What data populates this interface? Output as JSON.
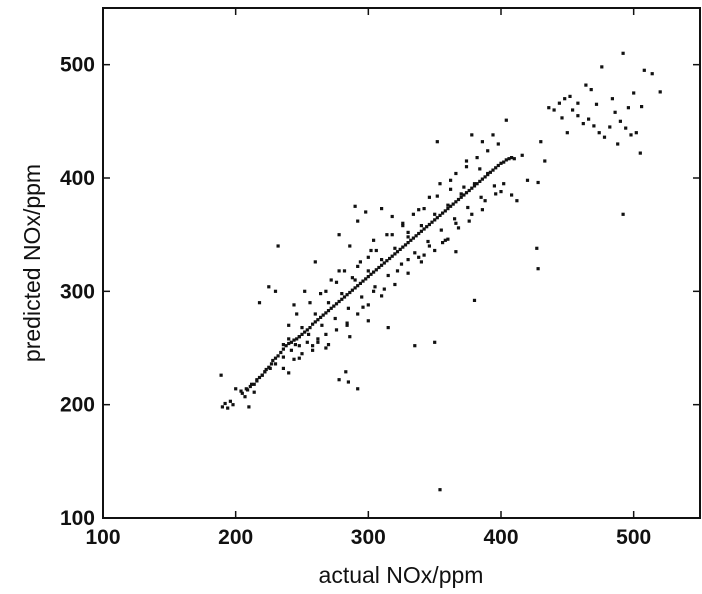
{
  "chart_data": {
    "type": "scatter",
    "xlabel": "actual NOx/ppm",
    "ylabel": "predicted NOx/ppm",
    "xlim": [
      100,
      550
    ],
    "ylim": [
      100,
      550
    ],
    "xticks": [
      100,
      200,
      300,
      400,
      500
    ],
    "yticks": [
      100,
      200,
      300,
      400,
      500
    ],
    "grid": false,
    "marker_color": "#111111",
    "points": [
      [
        190,
        198
      ],
      [
        192,
        201
      ],
      [
        194,
        197
      ],
      [
        196,
        203
      ],
      [
        198,
        200
      ],
      [
        189,
        226
      ],
      [
        200,
        214
      ],
      [
        205,
        210
      ],
      [
        207,
        207
      ],
      [
        209,
        213
      ],
      [
        211,
        216
      ],
      [
        214,
        218
      ],
      [
        216,
        221
      ],
      [
        218,
        224
      ],
      [
        220,
        226
      ],
      [
        222,
        229
      ],
      [
        223,
        231
      ],
      [
        225,
        233
      ],
      [
        227,
        236
      ],
      [
        228,
        239
      ],
      [
        230,
        241
      ],
      [
        232,
        243
      ],
      [
        234,
        246
      ],
      [
        236,
        249
      ],
      [
        238,
        252
      ],
      [
        240,
        254
      ],
      [
        242,
        255
      ],
      [
        244,
        257
      ],
      [
        246,
        258
      ],
      [
        248,
        260
      ],
      [
        250,
        262
      ],
      [
        252,
        264
      ],
      [
        254,
        266
      ],
      [
        256,
        268
      ],
      [
        258,
        271
      ],
      [
        260,
        273
      ],
      [
        262,
        275
      ],
      [
        264,
        277
      ],
      [
        266,
        279
      ],
      [
        268,
        281
      ],
      [
        270,
        283
      ],
      [
        272,
        285
      ],
      [
        274,
        287
      ],
      [
        276,
        289
      ],
      [
        278,
        291
      ],
      [
        280,
        293
      ],
      [
        282,
        295
      ],
      [
        284,
        297
      ],
      [
        286,
        299
      ],
      [
        288,
        301
      ],
      [
        290,
        303
      ],
      [
        292,
        305
      ],
      [
        294,
        307
      ],
      [
        296,
        309
      ],
      [
        298,
        311
      ],
      [
        300,
        313
      ],
      [
        302,
        315
      ],
      [
        304,
        317
      ],
      [
        306,
        319
      ],
      [
        308,
        321
      ],
      [
        310,
        323
      ],
      [
        312,
        325
      ],
      [
        314,
        327
      ],
      [
        316,
        329
      ],
      [
        318,
        331
      ],
      [
        320,
        333
      ],
      [
        322,
        335
      ],
      [
        324,
        337
      ],
      [
        326,
        339
      ],
      [
        328,
        341
      ],
      [
        330,
        343
      ],
      [
        332,
        345
      ],
      [
        334,
        347
      ],
      [
        336,
        349
      ],
      [
        338,
        351
      ],
      [
        340,
        353
      ],
      [
        342,
        355
      ],
      [
        344,
        357
      ],
      [
        346,
        359
      ],
      [
        348,
        361
      ],
      [
        350,
        363
      ],
      [
        352,
        365
      ],
      [
        354,
        367
      ],
      [
        356,
        369
      ],
      [
        358,
        371
      ],
      [
        360,
        373
      ],
      [
        362,
        375
      ],
      [
        364,
        377
      ],
      [
        366,
        379
      ],
      [
        368,
        381
      ],
      [
        370,
        383
      ],
      [
        372,
        385
      ],
      [
        374,
        387
      ],
      [
        376,
        389
      ],
      [
        378,
        391
      ],
      [
        380,
        393
      ],
      [
        382,
        395
      ],
      [
        384,
        397
      ],
      [
        386,
        399
      ],
      [
        388,
        401
      ],
      [
        390,
        403
      ],
      [
        392,
        405
      ],
      [
        394,
        407
      ],
      [
        396,
        409
      ],
      [
        398,
        411
      ],
      [
        400,
        413
      ],
      [
        402,
        414
      ],
      [
        404,
        416
      ],
      [
        406,
        417
      ],
      [
        408,
        418
      ],
      [
        410,
        417
      ],
      [
        240,
        258
      ],
      [
        245,
        253
      ],
      [
        250,
        268
      ],
      [
        255,
        262
      ],
      [
        260,
        280
      ],
      [
        265,
        270
      ],
      [
        270,
        290
      ],
      [
        275,
        276
      ],
      [
        280,
        298
      ],
      [
        285,
        285
      ],
      [
        290,
        310
      ],
      [
        295,
        295
      ],
      [
        300,
        318
      ],
      [
        305,
        304
      ],
      [
        310,
        328
      ],
      [
        315,
        314
      ],
      [
        320,
        338
      ],
      [
        325,
        324
      ],
      [
        330,
        348
      ],
      [
        335,
        334
      ],
      [
        340,
        358
      ],
      [
        345,
        344
      ],
      [
        350,
        368
      ],
      [
        355,
        354
      ],
      [
        360,
        376
      ],
      [
        365,
        364
      ],
      [
        370,
        386
      ],
      [
        375,
        374
      ],
      [
        380,
        395
      ],
      [
        385,
        383
      ],
      [
        390,
        404
      ],
      [
        395,
        393
      ],
      [
        268,
        300
      ],
      [
        272,
        310
      ],
      [
        278,
        318
      ],
      [
        262,
        255
      ],
      [
        258,
        248
      ],
      [
        250,
        245
      ],
      [
        248,
        241
      ],
      [
        284,
        270
      ],
      [
        288,
        312
      ],
      [
        292,
        322
      ],
      [
        296,
        286
      ],
      [
        300,
        330
      ],
      [
        304,
        300
      ],
      [
        306,
        336
      ],
      [
        312,
        302
      ],
      [
        318,
        350
      ],
      [
        322,
        318
      ],
      [
        326,
        360
      ],
      [
        330,
        328
      ],
      [
        334,
        368
      ],
      [
        338,
        330
      ],
      [
        342,
        373
      ],
      [
        346,
        340
      ],
      [
        352,
        384
      ],
      [
        358,
        345
      ],
      [
        362,
        390
      ],
      [
        366,
        360
      ],
      [
        372,
        392
      ],
      [
        378,
        368
      ],
      [
        384,
        408
      ],
      [
        388,
        380
      ],
      [
        232,
        340
      ],
      [
        225,
        304
      ],
      [
        230,
        300
      ],
      [
        218,
        290
      ],
      [
        236,
        253
      ],
      [
        244,
        288
      ],
      [
        252,
        300
      ],
      [
        260,
        326
      ],
      [
        278,
        350
      ],
      [
        290,
        375
      ],
      [
        292,
        362
      ],
      [
        286,
        340
      ],
      [
        298,
        370
      ],
      [
        304,
        345
      ],
      [
        310,
        373
      ],
      [
        318,
        366
      ],
      [
        330,
        352
      ],
      [
        342,
        332
      ],
      [
        356,
        343
      ],
      [
        366,
        335
      ],
      [
        378,
        438
      ],
      [
        394,
        438
      ],
      [
        404,
        451
      ],
      [
        416,
        420
      ],
      [
        430,
        432
      ],
      [
        433,
        415
      ],
      [
        420,
        398
      ],
      [
        428,
        396
      ],
      [
        400,
        388
      ],
      [
        408,
        385
      ],
      [
        412,
        380
      ],
      [
        352,
        432
      ],
      [
        380,
        292
      ],
      [
        350,
        255
      ],
      [
        335,
        252
      ],
      [
        315,
        268
      ],
      [
        300,
        274
      ],
      [
        286,
        260
      ],
      [
        270,
        253
      ],
      [
        278,
        222
      ],
      [
        285,
        220
      ],
      [
        292,
        214
      ],
      [
        283,
        229
      ],
      [
        268,
        250
      ],
      [
        258,
        252
      ],
      [
        244,
        240
      ],
      [
        248,
        260
      ],
      [
        236,
        232
      ],
      [
        240,
        228
      ],
      [
        222,
        229
      ],
      [
        214,
        211
      ],
      [
        210,
        198
      ],
      [
        428,
        320
      ],
      [
        492,
        368
      ],
      [
        354,
        125
      ],
      [
        427,
        338
      ],
      [
        440,
        460
      ],
      [
        446,
        453
      ],
      [
        450,
        440
      ],
      [
        454,
        460
      ],
      [
        458,
        455
      ],
      [
        462,
        448
      ],
      [
        466,
        452
      ],
      [
        470,
        446
      ],
      [
        474,
        440
      ],
      [
        478,
        436
      ],
      [
        482,
        445
      ],
      [
        486,
        458
      ],
      [
        490,
        450
      ],
      [
        494,
        444
      ],
      [
        498,
        438
      ],
      [
        502,
        440
      ],
      [
        506,
        463
      ],
      [
        452,
        472
      ],
      [
        468,
        478
      ],
      [
        476,
        498
      ],
      [
        464,
        482
      ],
      [
        484,
        470
      ],
      [
        492,
        510
      ],
      [
        500,
        475
      ],
      [
        508,
        495
      ],
      [
        514,
        492
      ],
      [
        520,
        476
      ],
      [
        505,
        422
      ],
      [
        458,
        466
      ],
      [
        448,
        470
      ],
      [
        436,
        462
      ],
      [
        444,
        466
      ],
      [
        472,
        465
      ],
      [
        496,
        462
      ],
      [
        488,
        430
      ],
      [
        362,
        398
      ],
      [
        354,
        395
      ],
      [
        346,
        383
      ],
      [
        338,
        372
      ],
      [
        326,
        358
      ],
      [
        314,
        350
      ],
      [
        302,
        336
      ],
      [
        294,
        326
      ],
      [
        282,
        318
      ],
      [
        276,
        308
      ],
      [
        264,
        298
      ],
      [
        256,
        290
      ],
      [
        246,
        280
      ],
      [
        240,
        270
      ],
      [
        366,
        404
      ],
      [
        374,
        410
      ],
      [
        382,
        418
      ],
      [
        390,
        424
      ],
      [
        398,
        430
      ],
      [
        386,
        432
      ],
      [
        374,
        415
      ],
      [
        402,
        395
      ],
      [
        396,
        386
      ],
      [
        386,
        372
      ],
      [
        376,
        362
      ],
      [
        368,
        356
      ],
      [
        360,
        346
      ],
      [
        350,
        336
      ],
      [
        340,
        326
      ],
      [
        330,
        316
      ],
      [
        320,
        306
      ],
      [
        310,
        296
      ],
      [
        300,
        288
      ],
      [
        292,
        280
      ],
      [
        284,
        272
      ],
      [
        276,
        266
      ],
      [
        268,
        262
      ],
      [
        262,
        258
      ],
      [
        254,
        255
      ],
      [
        248,
        252
      ],
      [
        242,
        248
      ],
      [
        236,
        242
      ],
      [
        230,
        236
      ],
      [
        226,
        232
      ],
      [
        220,
        226
      ],
      [
        216,
        222
      ],
      [
        212,
        218
      ],
      [
        208,
        214
      ],
      [
        204,
        212
      ]
    ]
  }
}
